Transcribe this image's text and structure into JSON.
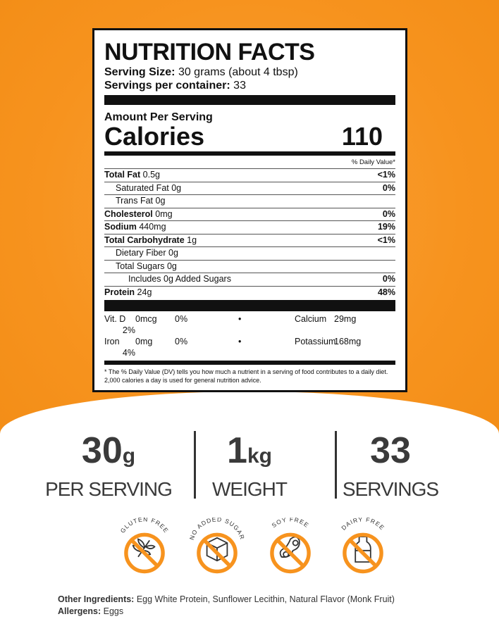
{
  "label": {
    "title": "NUTRITION FACTS",
    "serving_size_label": "Serving Size:",
    "serving_size": "30 grams (about 4 tbsp)",
    "servings_label": "Servings per container:",
    "servings": "33",
    "amount_per_serving": "Amount Per Serving",
    "calories_label": "Calories",
    "calories": "110",
    "dv_header": "% Daily Value*",
    "rows": [
      {
        "name": "Total Fat",
        "amount": "0.5g",
        "dv": "<1%",
        "bold": true,
        "indent": 0
      },
      {
        "name": "Saturated Fat",
        "amount": "0g",
        "dv": "0%",
        "bold": false,
        "indent": 1
      },
      {
        "name": "Trans Fat",
        "amount": "0g",
        "dv": "",
        "bold": false,
        "indent": 1
      },
      {
        "name": "Cholesterol",
        "amount": "0mg",
        "dv": "0%",
        "bold": true,
        "indent": 0
      },
      {
        "name": "Sodium",
        "amount": "440mg",
        "dv": "19%",
        "bold": true,
        "indent": 0
      },
      {
        "name": "Total Carbohydrate",
        "amount": "1g",
        "dv": "<1%",
        "bold": true,
        "indent": 0
      },
      {
        "name": "Dietary Fiber",
        "amount": "0g",
        "dv": "",
        "bold": false,
        "indent": 1
      },
      {
        "name": "Total Sugars",
        "amount": "0g",
        "dv": "",
        "bold": false,
        "indent": 1
      },
      {
        "name": "Includes 0g Added Sugars",
        "amount": "",
        "dv": "0%",
        "bold": false,
        "indent": 2
      },
      {
        "name": "Protein",
        "amount": "24g",
        "dv": "48%",
        "bold": true,
        "indent": 0
      }
    ],
    "vitamins": [
      [
        "Vit. D",
        "0mcg",
        "0%",
        "•",
        "Calcium",
        "29mg",
        "2%"
      ],
      [
        "Iron",
        "0mg",
        "0%",
        "•",
        "Potassium",
        "168mg",
        "4%"
      ]
    ],
    "footnote": "* The % Daily Value (DV) tells you how much a nutrient in a serving of food contributes to a daily diet. 2,000 calories a day is used for general nutrition advice."
  },
  "stats": [
    {
      "value": "30",
      "unit": "g",
      "label": "PER SERVING"
    },
    {
      "value": "1",
      "unit": "kg",
      "label": "WEIGHT"
    },
    {
      "value": "33",
      "unit": "",
      "label": "SERVINGS"
    }
  ],
  "badges": [
    {
      "label": "GLUTEN FREE",
      "icon": "wheat-icon"
    },
    {
      "label": "NO ADDED SUGAR",
      "icon": "sugar-cube-icon"
    },
    {
      "label": "SOY FREE",
      "icon": "soybean-icon"
    },
    {
      "label": "DAIRY FREE",
      "icon": "milk-bottle-icon"
    }
  ],
  "ingredients": {
    "label": "Other Ingredients:",
    "text": "Egg White Protein, Sunflower Lecithin, Natural Flavor (Monk Fruit)"
  },
  "allergens": {
    "label": "Allergens:",
    "text": "Eggs"
  },
  "colors": {
    "orange": "#f7931e",
    "text": "#3a3a3a"
  }
}
